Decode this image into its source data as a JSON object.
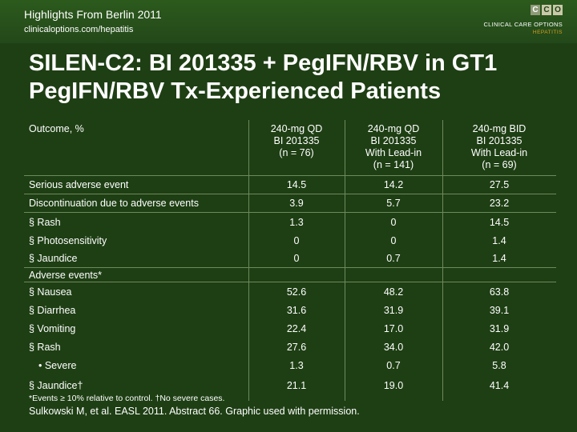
{
  "header": {
    "conference": "Highlights From Berlin 2011",
    "url": "clinicaloptions.com/hepatitis",
    "logo_letters": [
      "C",
      "C",
      "O"
    ],
    "logo_name": "CLINICAL CARE OPTIONS",
    "logo_tag": "HEPATITIS"
  },
  "title_line1": "SILEN-C2: BI 201335 + PegIFN/RBV in GT1",
  "title_line2": "PegIFN/RBV Tx-Experienced Patients",
  "table": {
    "outcome_label": "Outcome, %",
    "columns": [
      [
        "240-mg QD",
        "BI 201335",
        "(n = 76)"
      ],
      [
        "240-mg QD",
        "BI 201335",
        "With Lead-in",
        "(n = 141)"
      ],
      [
        "240-mg BID",
        "BI 201335",
        "With Lead-in",
        "(n = 69)"
      ]
    ],
    "rows": [
      {
        "label": "Serious adverse event",
        "v": [
          "14.5",
          "14.2",
          "27.5"
        ]
      },
      {
        "label": "Discontinuation due to adverse events",
        "v": [
          "3.9",
          "5.7",
          "23.2"
        ]
      },
      {
        "label": "§ Rash",
        "v": [
          "1.3",
          "0",
          "14.5"
        ]
      },
      {
        "label": "§ Photosensitivity",
        "v": [
          "0",
          "0",
          "1.4"
        ]
      },
      {
        "label": "§ Jaundice",
        "v": [
          "0",
          "0.7",
          "1.4"
        ]
      },
      {
        "label": "Adverse events*",
        "v": [
          "",
          "",
          ""
        ]
      },
      {
        "label": "§ Nausea",
        "v": [
          "52.6",
          "48.2",
          "63.8"
        ]
      },
      {
        "label": "§ Diarrhea",
        "v": [
          "31.6",
          "31.9",
          "39.1"
        ]
      },
      {
        "label": "§ Vomiting",
        "v": [
          "22.4",
          "17.0",
          "31.9"
        ]
      },
      {
        "label": "§ Rash",
        "v": [
          "27.6",
          "34.0",
          "42.0"
        ]
      },
      {
        "label": "• Severe",
        "v": [
          "1.3",
          "0.7",
          "5.8"
        ]
      },
      {
        "label": "§ Jaundice†",
        "v": [
          "21.1",
          "19.0",
          "41.4"
        ]
      }
    ]
  },
  "footnote": "*Events ≥ 10% relative to control. †No severe cases.",
  "citation": "Sulkowski M, et al. EASL 2011. Abstract 66. Graphic used with permission."
}
